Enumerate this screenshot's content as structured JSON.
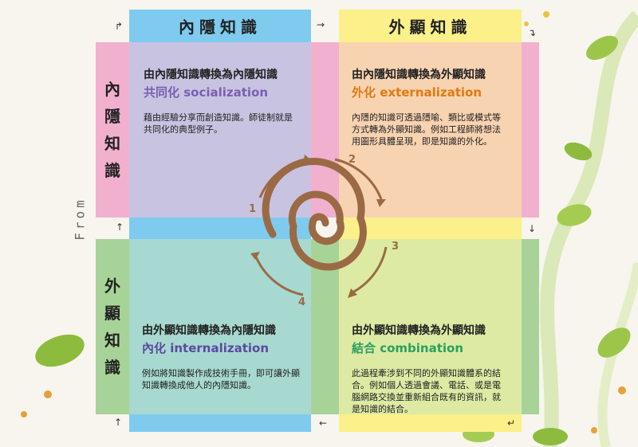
{
  "top_labels": {
    "tacit": "內隱知識",
    "explicit": "外顯知識"
  },
  "side_labels": {
    "tacit": [
      "內",
      "隱",
      "知",
      "識"
    ],
    "explicit": [
      "外",
      "顯",
      "知",
      "識"
    ],
    "from": "From"
  },
  "quadrants": {
    "socialization": {
      "title": "由內隱知識轉換為內隱知識",
      "mode": "共同化 socialization",
      "body": "藉由經驗分享而創造知識。師徒制就是共同化的典型例子。",
      "color": "#7a5fb0"
    },
    "externalization": {
      "title": "由內隱知識轉換為外顯知識",
      "mode": "外化 externalization",
      "body": "內隱的知識可透過隱喻、類比或模式等方式轉為外顯知識。例如工程師將想法用圖形具體呈現，即是知識的外化。",
      "color": "#e07a10"
    },
    "internalization": {
      "title": "由外顯知識轉換為內隱知識",
      "mode": "內化 internalization",
      "body": "例如將知識製作成技術手冊，即可讓外顯知識轉換成他人的內隱知識。",
      "color": "#5b4aa0"
    },
    "combination": {
      "title": "由外顯知識轉換為外顯知識",
      "mode": "結合 combination",
      "body": "此過程牽涉到不同的外顯知識體系的結合。例如個人透過會議、電話、或是電腦網路交換並重新組合既有的資訊，就是知識的結合。",
      "color": "#2ba060"
    }
  },
  "cycle_numbers": [
    "1",
    "2",
    "3",
    "4"
  ],
  "colors": {
    "blue": "#7fcbef",
    "yellow": "#fbf08a",
    "pink": "#f2b0cf",
    "green": "#a8d398",
    "q_purple": "#c9c3e2",
    "q_peach": "#f8d3b1",
    "q_teal": "#a7d9d0",
    "q_lime": "#ddeaa4",
    "spiral": "#9b6a44"
  }
}
